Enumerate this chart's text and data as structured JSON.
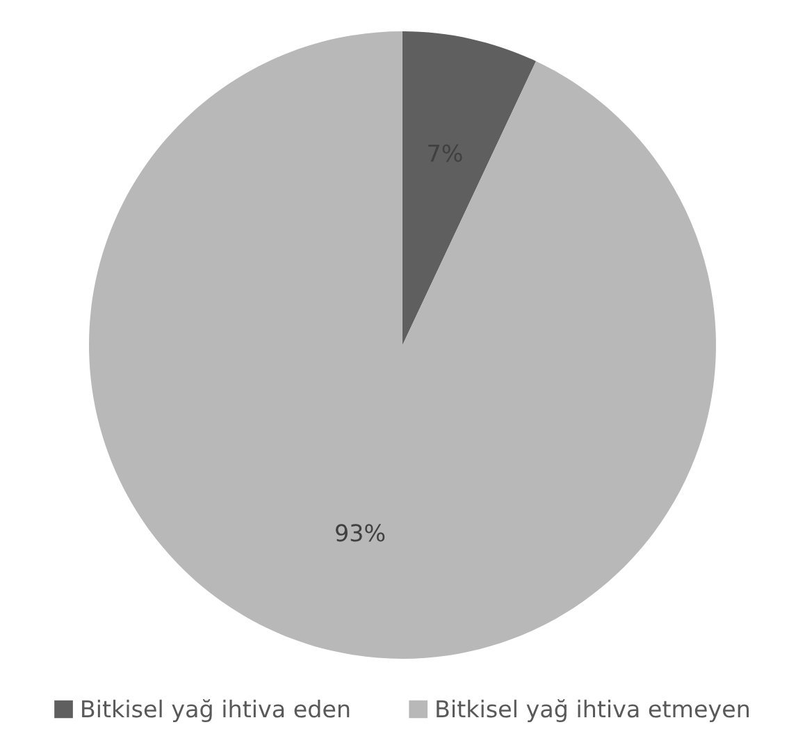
{
  "chart_data": {
    "type": "pie",
    "categories": [
      "Bitkisel yağ ihtiva eden",
      "Bitkisel yağ ihtiva etmeyen"
    ],
    "values": [
      7,
      93
    ],
    "colors": [
      "#5f5f5f",
      "#b8b8b8"
    ],
    "data_labels": true,
    "value_labels": [
      "7%",
      "93%"
    ],
    "legend": "bottom"
  }
}
